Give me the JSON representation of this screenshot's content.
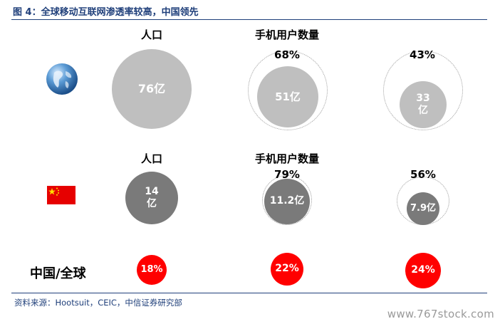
{
  "figure": {
    "title": "图 4：全球移动互联网渗透率较高，中国领先",
    "source": "资料来源：Hootsuit，CEIC，中信证券研究部",
    "watermark": "www.767stock.com"
  },
  "icons": {
    "globe": "globe-icon",
    "flag": "china-flag-icon"
  },
  "colors": {
    "title": "#1f3f7a",
    "global": "#bfbfbf",
    "china": "#7a7a7a",
    "ratio": "#ff0000"
  },
  "chart_data": {
    "type": "bubble",
    "headers": {
      "population": "人口",
      "mobile_users": "手机用户数量"
    },
    "rows": [
      {
        "region": "global",
        "population": {
          "value": 76,
          "label": "76亿"
        },
        "mobile_users": [
          {
            "value": 51,
            "label": "51亿",
            "pct": "68%"
          },
          {
            "value": 33,
            "label": "33亿",
            "pct": "43%"
          }
        ]
      },
      {
        "region": "china",
        "population": {
          "value": 14,
          "label": "14亿"
        },
        "mobile_users": [
          {
            "value": 11.2,
            "label": "11.2亿",
            "pct": "79%"
          },
          {
            "value": 7.9,
            "label": "7.9亿",
            "pct": "56%"
          }
        ]
      }
    ],
    "ratio_row": {
      "label": "中国/全球",
      "values": [
        "18%",
        "22%",
        "24%"
      ]
    }
  }
}
